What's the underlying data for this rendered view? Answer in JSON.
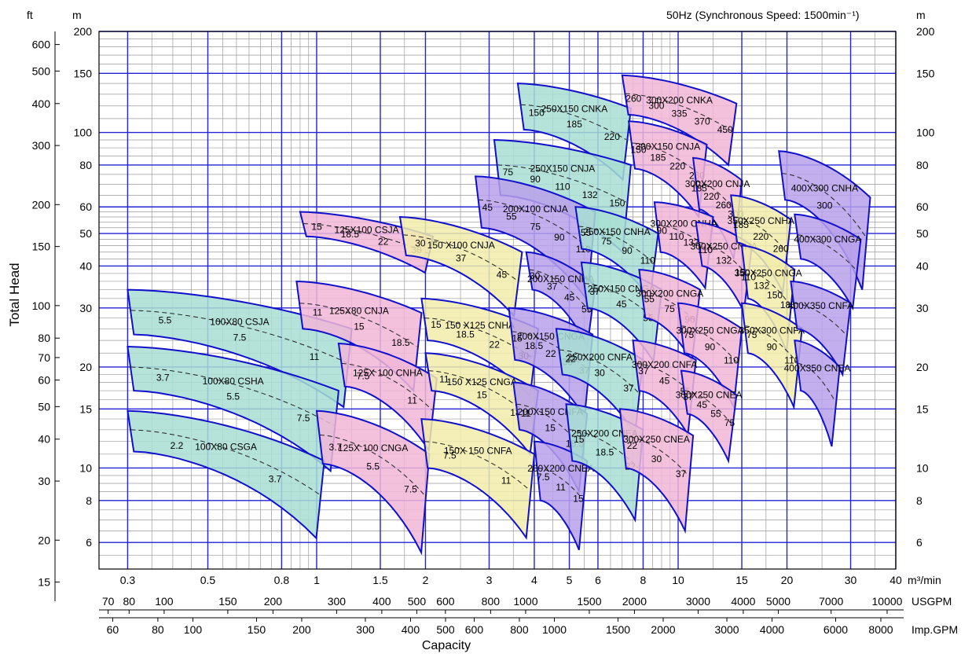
{
  "chart_data": {
    "type": "area",
    "title": "50Hz (Synchronous Speed: 1500min⁻¹)",
    "ylabel": "Total Head",
    "xlabel": "Capacity",
    "x_scale": "log",
    "y_scale": "log",
    "xlim": [
      0.25,
      40
    ],
    "ylim": [
      5,
      200
    ],
    "grid": true,
    "units": {
      "left_ft": "ft",
      "left_m": "m",
      "right_m": "m",
      "x_primary": "m³/min",
      "usgpm": "USGPM",
      "impgpm": "Imp.GPM"
    },
    "x_ticks_m3min": [
      "0.3",
      "0.5",
      "0.8",
      "1",
      "1.5",
      "2",
      "3",
      "4",
      "5",
      "6",
      "8",
      "10",
      "15",
      "20",
      "30",
      "40"
    ],
    "x_ticks_usgpm": [
      "70",
      "80",
      "100",
      "150",
      "200",
      "300",
      "400",
      "500",
      "600",
      "800",
      "1000",
      "1500",
      "2000",
      "3000",
      "4000",
      "5000",
      "7000",
      "10000"
    ],
    "x_ticks_impgpm": [
      "60",
      "80",
      "100",
      "150",
      "200",
      "300",
      "400",
      "500",
      "600",
      "800",
      "1000",
      "1500",
      "2000",
      "3000",
      "4000",
      "6000",
      "8000"
    ],
    "y_ticks_m": [
      "200",
      "150",
      "100",
      "80",
      "60",
      "50",
      "40",
      "30",
      "20",
      "15",
      "10",
      "8",
      "6"
    ],
    "y_ticks_ft": [
      "600",
      "500",
      "400",
      "300",
      "200",
      "150",
      "100",
      "80",
      "70",
      "60",
      "50",
      "40",
      "30",
      "20",
      "15"
    ],
    "color_legend": {
      "teal": "#a8ded2",
      "pink": "#f1b6d6",
      "yellow": "#f1ecaa",
      "purple": "#b9a1ea",
      "outline": "#1010cc"
    },
    "pumps": [
      {
        "name": "100X80 CSJA",
        "color": "teal",
        "q": [
          0.3,
          1.25
        ],
        "h": [
          34,
          26
        ],
        "dh": -9,
        "kw": [
          "5.5",
          "7.5",
          "11"
        ]
      },
      {
        "name": "100X80 CSHA",
        "color": "teal",
        "q": [
          0.3,
          1.15
        ],
        "h": [
          23,
          17
        ],
        "dh": -6,
        "kw": [
          "3.7",
          "5.5",
          "7.5"
        ]
      },
      {
        "name": "100X80 CSGA",
        "color": "teal",
        "q": [
          0.3,
          1.05
        ],
        "h": [
          14.8,
          10.5
        ],
        "dh": -3.6,
        "kw": [
          "2.2",
          "3.7"
        ]
      },
      {
        "name": "125X100 CSJA",
        "color": "pink",
        "q": [
          0.9,
          2.1
        ],
        "h": [
          58,
          49
        ],
        "dh": -9,
        "kw": [
          "15",
          "18.5",
          "22",
          "30"
        ]
      },
      {
        "name": "125X80 CNJA",
        "color": "pink",
        "q": [
          0.88,
          1.95
        ],
        "h": [
          36,
          29
        ],
        "dh": -10,
        "kw": [
          "11",
          "15",
          "18.5"
        ]
      },
      {
        "name": "125X 100 CNHA",
        "color": "pink",
        "q": [
          1.15,
          2.15
        ],
        "h": [
          23.5,
          18.5
        ],
        "dh": -6,
        "kw": [
          "7.5",
          "11"
        ]
      },
      {
        "name": "125X 100 CNGA",
        "color": "pink",
        "q": [
          1.0,
          2.05
        ],
        "h": [
          14.8,
          11
        ],
        "dh": -4.5,
        "kw": [
          "3.7",
          "5.5",
          "7.5"
        ]
      },
      {
        "name": "150 X100 CNJA",
        "color": "yellow",
        "q": [
          1.7,
          3.7
        ],
        "h": [
          56,
          44
        ],
        "dh": -13,
        "kw": [
          "30",
          "37",
          "45"
        ]
      },
      {
        "name": "150 X125 CNHA",
        "color": "yellow",
        "q": [
          1.95,
          4.1
        ],
        "h": [
          32,
          26
        ],
        "dh": -8,
        "kw": [
          "15",
          "18.5",
          "22",
          "30"
        ]
      },
      {
        "name": "150 X125 CNGA",
        "color": "yellow",
        "q": [
          2.0,
          4.1
        ],
        "h": [
          22,
          17
        ],
        "dh": -5,
        "kw": [
          "11",
          "15",
          "18.5"
        ]
      },
      {
        "name": "150X 150 CNFA",
        "color": "yellow",
        "q": [
          1.95,
          4.0
        ],
        "h": [
          14,
          11
        ],
        "dh": -4,
        "kw": [
          "7.5",
          "11"
        ]
      },
      {
        "name": "250X150 CNKA",
        "color": "teal",
        "q": [
          3.6,
          7.4
        ],
        "h": [
          140,
          118
        ],
        "dh": -38,
        "kw": [
          "150",
          "185",
          "220"
        ]
      },
      {
        "name": "250X150 CNJA",
        "color": "teal",
        "q": [
          3.1,
          7.4
        ],
        "h": [
          95,
          80
        ],
        "dh": -30,
        "kw": [
          "75",
          "90",
          "110",
          "132",
          "150"
        ]
      },
      {
        "name": "200X100 CNJA",
        "color": "purple",
        "q": [
          2.75,
          5.9
        ],
        "h": [
          74,
          58
        ],
        "dh": -22,
        "kw": [
          "45",
          "55",
          "75",
          "90",
          "110"
        ]
      },
      {
        "name": "200X150 CNHA",
        "color": "purple",
        "q": [
          3.8,
          5.9
        ],
        "h": [
          44,
          35
        ],
        "dh": -10,
        "kw": [
          "30",
          "37",
          "45",
          "55"
        ]
      },
      {
        "name": "200X150 CNGA",
        "color": "purple",
        "q": [
          3.4,
          5.8
        ],
        "h": [
          30,
          25
        ],
        "dh": -9,
        "kw": [
          "15",
          "18.5",
          "22",
          "30",
          "37"
        ]
      },
      {
        "name": "200X150 CNFA",
        "color": "purple",
        "q": [
          3.5,
          5.6
        ],
        "h": [
          18,
          14.5
        ],
        "dh": -5,
        "kw": [
          "11",
          "15",
          "18.5"
        ]
      },
      {
        "name": "200X200 CNEA",
        "color": "purple",
        "q": [
          4.0,
          5.6
        ],
        "h": [
          12,
          10.5
        ],
        "dh": -4,
        "kw": [
          "7.5",
          "11",
          "15"
        ]
      },
      {
        "name": "250X150 CNHA",
        "color": "teal",
        "q": [
          5.2,
          8.8
        ],
        "h": [
          60,
          50
        ],
        "dh": -15,
        "kw": [
          "55",
          "75",
          "90",
          "110"
        ]
      },
      {
        "name": "250X150 CNGA",
        "color": "teal",
        "q": [
          5.4,
          9.0
        ],
        "h": [
          41,
          34
        ],
        "dh": -11,
        "kw": [
          "37",
          "45",
          "55"
        ]
      },
      {
        "name": "250X200 CNFA",
        "color": "teal",
        "q": [
          4.6,
          8.0
        ],
        "h": [
          26,
          21
        ],
        "dh": -7,
        "kw": [
          "22",
          "30",
          "37"
        ]
      },
      {
        "name": "250X200 CNEA",
        "color": "teal",
        "q": [
          4.9,
          8.0
        ],
        "h": [
          15.5,
          13
        ],
        "dh": -5,
        "kw": [
          "15",
          "18.5",
          "22"
        ]
      },
      {
        "name": "300X200 CNKA",
        "color": "pink",
        "q": [
          7.0,
          14.5
        ],
        "h": [
          148,
          122
        ],
        "dh": -35,
        "kw": [
          "260",
          "300",
          "335",
          "370",
          "450"
        ]
      },
      {
        "name": "300X150 CNJA",
        "color": "pink",
        "q": [
          7.3,
          12
        ],
        "h": [
          108,
          92
        ],
        "dh": -30,
        "kw": [
          "150",
          "185",
          "220",
          "260"
        ]
      },
      {
        "name": "300X200 CNJA",
        "color": "pink",
        "q": [
          11,
          15
        ],
        "h": [
          84,
          72
        ],
        "dh": -25,
        "kw": [
          "185",
          "220",
          "260",
          "300"
        ]
      },
      {
        "name": "300X200 CNHA",
        "color": "pink",
        "q": [
          8.6,
          12.5
        ],
        "h": [
          62,
          56
        ],
        "dh": -18,
        "kw": [
          "90",
          "110",
          "132",
          "150"
        ]
      },
      {
        "name": "300X250 CNHA",
        "color": "pink",
        "q": [
          11.2,
          16
        ],
        "h": [
          54,
          46
        ],
        "dh": -14,
        "kw": [
          "110",
          "132",
          "150"
        ]
      },
      {
        "name": "300X200 CNGA",
        "color": "pink",
        "q": [
          7.8,
          11.5
        ],
        "h": [
          39,
          34
        ],
        "dh": -11,
        "kw": [
          "55",
          "75",
          "90"
        ]
      },
      {
        "name": "300X250 CNGA",
        "color": "pink",
        "q": [
          10,
          15
        ],
        "h": [
          31,
          26
        ],
        "dh": -9,
        "kw": [
          "75",
          "90",
          "110"
        ]
      },
      {
        "name": "300X200 CNFA",
        "color": "pink",
        "q": [
          7.5,
          11.2
        ],
        "h": [
          24,
          21
        ],
        "dh": -7,
        "kw": [
          "37",
          "45",
          "55"
        ]
      },
      {
        "name": "300X250 CNEA",
        "color": "pink",
        "q": [
          6.9,
          11
        ],
        "h": [
          15,
          12.5
        ],
        "dh": -5,
        "kw": [
          "22",
          "30",
          "37"
        ]
      },
      {
        "name": "300X250 CNEA",
        "color": "pink",
        "q": [
          10.2,
          14.5
        ],
        "h": [
          19.5,
          16.5
        ],
        "dh": -5,
        "kw": [
          "37",
          "45",
          "55",
          "75"
        ]
      },
      {
        "name": "350X250 CNHA",
        "color": "yellow",
        "q": [
          14,
          20.5
        ],
        "h": [
          65,
          55
        ],
        "dh": -18,
        "kw": [
          "185",
          "220",
          "260"
        ]
      },
      {
        "name": "350X250 CNGA",
        "color": "yellow",
        "q": [
          15,
          21
        ],
        "h": [
          46,
          39
        ],
        "dh": -14,
        "kw": [
          "110",
          "132",
          "150",
          "185"
        ]
      },
      {
        "name": "350X300 CNFA",
        "color": "yellow",
        "q": [
          15,
          22
        ],
        "h": [
          31,
          26
        ],
        "dh": -9,
        "kw": [
          "75",
          "90",
          "110"
        ]
      },
      {
        "name": "400X300 CNHA",
        "color": "purple",
        "q": [
          19,
          34
        ],
        "h": [
          88,
          64
        ],
        "dh": -25,
        "kw": [
          "300"
        ]
      },
      {
        "name": "400X300 CNGA",
        "color": "purple",
        "q": [
          21,
          32
        ],
        "h": [
          57,
          48
        ],
        "dh": -15,
        "kw": []
      },
      {
        "name": "400X350 CNFA",
        "color": "purple",
        "q": [
          20.5,
          30
        ],
        "h": [
          36,
          31
        ],
        "dh": -10,
        "kw": []
      },
      {
        "name": "400X350 CNEA",
        "color": "purple",
        "q": [
          21,
          28
        ],
        "h": [
          24,
          20
        ],
        "dh": -7,
        "kw": []
      }
    ]
  }
}
